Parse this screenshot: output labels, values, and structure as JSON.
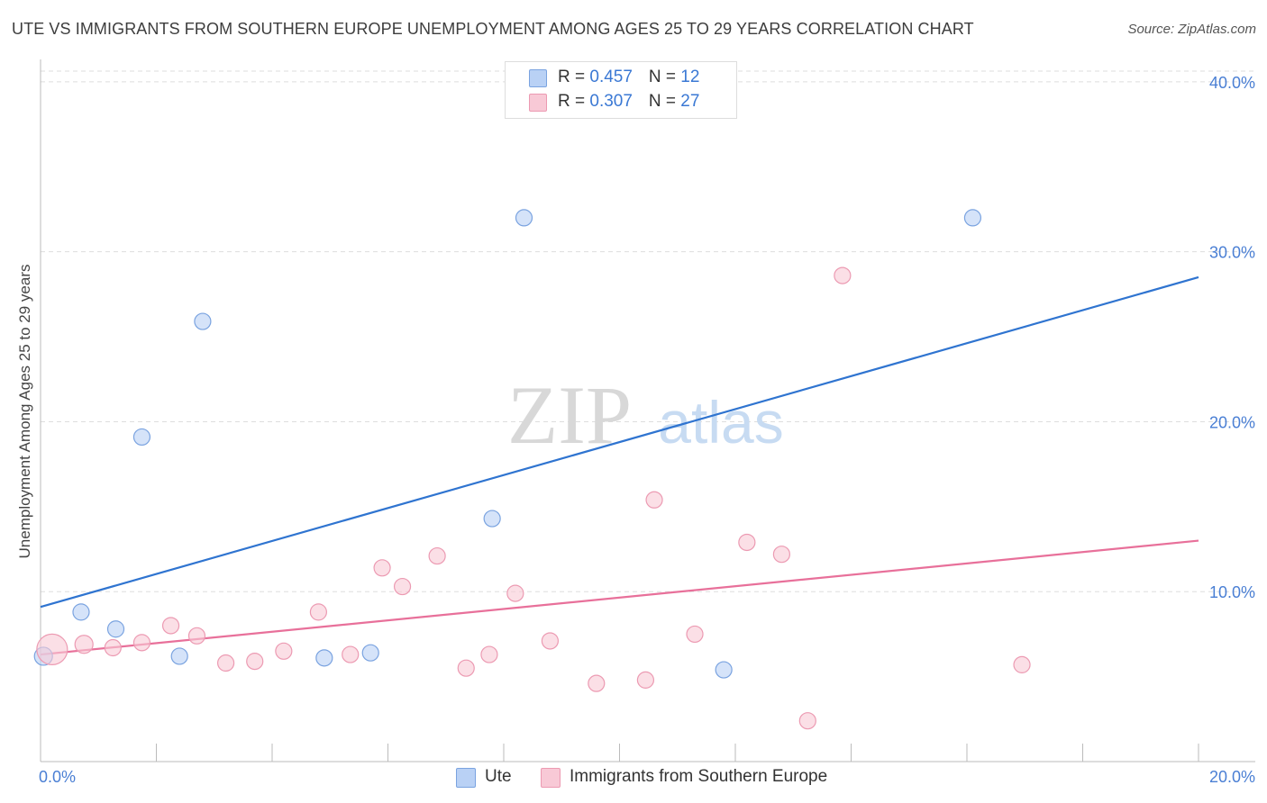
{
  "header": {
    "title": "UTE VS IMMIGRANTS FROM SOUTHERN EUROPE UNEMPLOYMENT AMONG AGES 25 TO 29 YEARS CORRELATION CHART",
    "source": "Source: ZipAtlas.com"
  },
  "watermark": {
    "zip": "ZIP",
    "atlas": "atlas"
  },
  "legend": {
    "ute": {
      "r_label": "R = ",
      "r_value": "0.457",
      "n_label": "N = ",
      "n_value": "12"
    },
    "immigrants": {
      "r_label": "R = ",
      "r_value": "0.307",
      "n_label": "N = ",
      "n_value": "27"
    }
  },
  "bottom_legend": {
    "ute": "Ute",
    "immigrants": "Immigrants from Southern Europe"
  },
  "colors": {
    "ute_fill": "#b9d1f5",
    "ute_stroke": "#7aa3e0",
    "ute_line": "#2f74d0",
    "imm_fill": "#f8c9d6",
    "imm_stroke": "#ec9ab2",
    "imm_line": "#e8709a",
    "grid": "#dddddd",
    "axis_text": "#4a7fd4"
  },
  "chart_data": {
    "type": "scatter",
    "title": "UTE VS IMMIGRANTS FROM SOUTHERN EUROPE UNEMPLOYMENT AMONG AGES 25 TO 29 YEARS CORRELATION CHART",
    "xlabel": "",
    "ylabel": "Unemployment Among Ages 25 to 29 years",
    "xlim": [
      0,
      20
    ],
    "ylim": [
      0,
      41
    ],
    "x_tick_labels": [
      "0.0%",
      "20.0%"
    ],
    "y_ticks": [
      10,
      20,
      30,
      40
    ],
    "y_tick_labels": [
      "10.0%",
      "20.0%",
      "30.0%",
      "40.0%"
    ],
    "grid": true,
    "series": [
      {
        "name": "Ute",
        "r": 0.457,
        "n": 12,
        "points": [
          {
            "x": 0.05,
            "y": 6.2,
            "size": 10
          },
          {
            "x": 0.7,
            "y": 8.8,
            "size": 9
          },
          {
            "x": 1.3,
            "y": 7.8,
            "size": 9
          },
          {
            "x": 1.75,
            "y": 19.1,
            "size": 9
          },
          {
            "x": 2.4,
            "y": 6.2,
            "size": 9
          },
          {
            "x": 2.8,
            "y": 25.9,
            "size": 9
          },
          {
            "x": 4.9,
            "y": 6.1,
            "size": 9
          },
          {
            "x": 5.7,
            "y": 6.4,
            "size": 9
          },
          {
            "x": 7.8,
            "y": 14.3,
            "size": 9
          },
          {
            "x": 8.35,
            "y": 32.0,
            "size": 9
          },
          {
            "x": 11.8,
            "y": 5.4,
            "size": 9
          },
          {
            "x": 16.1,
            "y": 32.0,
            "size": 9
          }
        ],
        "trend": {
          "x": [
            0,
            20
          ],
          "y": [
            9.1,
            28.5
          ]
        }
      },
      {
        "name": "Immigrants from Southern Europe",
        "r": 0.307,
        "n": 27,
        "points": [
          {
            "x": 0.2,
            "y": 6.6,
            "size": 17
          },
          {
            "x": 0.75,
            "y": 6.9,
            "size": 10
          },
          {
            "x": 1.25,
            "y": 6.7,
            "size": 9
          },
          {
            "x": 1.75,
            "y": 7.0,
            "size": 9
          },
          {
            "x": 2.25,
            "y": 8.0,
            "size": 9
          },
          {
            "x": 2.7,
            "y": 7.4,
            "size": 9
          },
          {
            "x": 3.2,
            "y": 5.8,
            "size": 9
          },
          {
            "x": 3.7,
            "y": 5.9,
            "size": 9
          },
          {
            "x": 4.2,
            "y": 6.5,
            "size": 9
          },
          {
            "x": 4.8,
            "y": 8.8,
            "size": 9
          },
          {
            "x": 5.35,
            "y": 6.3,
            "size": 9
          },
          {
            "x": 5.9,
            "y": 11.4,
            "size": 9
          },
          {
            "x": 6.25,
            "y": 10.3,
            "size": 9
          },
          {
            "x": 6.85,
            "y": 12.1,
            "size": 9
          },
          {
            "x": 7.35,
            "y": 5.5,
            "size": 9
          },
          {
            "x": 7.75,
            "y": 6.3,
            "size": 9
          },
          {
            "x": 8.2,
            "y": 9.9,
            "size": 9
          },
          {
            "x": 8.8,
            "y": 7.1,
            "size": 9
          },
          {
            "x": 9.6,
            "y": 4.6,
            "size": 9
          },
          {
            "x": 10.45,
            "y": 4.8,
            "size": 9
          },
          {
            "x": 10.6,
            "y": 15.4,
            "size": 9
          },
          {
            "x": 11.3,
            "y": 7.5,
            "size": 9
          },
          {
            "x": 12.2,
            "y": 12.9,
            "size": 9
          },
          {
            "x": 12.8,
            "y": 12.2,
            "size": 9
          },
          {
            "x": 13.25,
            "y": 2.4,
            "size": 9
          },
          {
            "x": 13.85,
            "y": 28.6,
            "size": 9
          },
          {
            "x": 16.95,
            "y": 5.7,
            "size": 9
          }
        ],
        "trend": {
          "x": [
            0,
            20
          ],
          "y": [
            6.3,
            13.0
          ]
        }
      }
    ]
  }
}
